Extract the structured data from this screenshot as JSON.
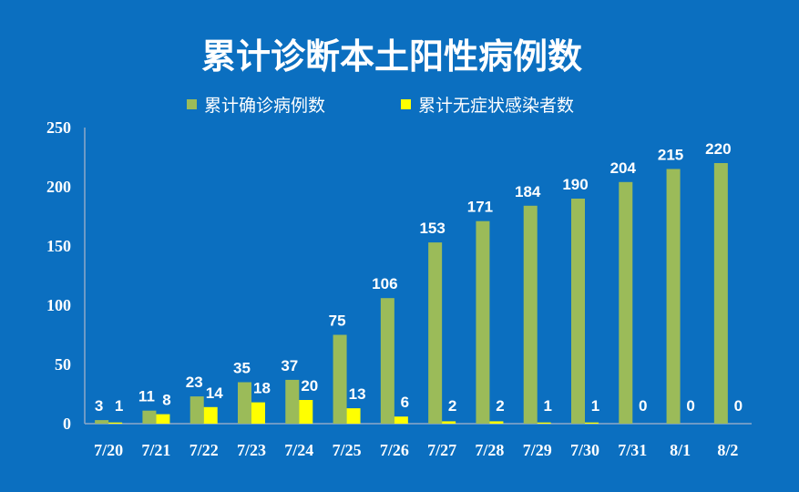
{
  "chart_data": {
    "type": "bar",
    "title": "累计诊断本土阳性病例数",
    "categories": [
      "7/20",
      "7/21",
      "7/22",
      "7/23",
      "7/24",
      "7/25",
      "7/26",
      "7/27",
      "7/28",
      "7/29",
      "7/30",
      "7/31",
      "8/1",
      "8/2"
    ],
    "series": [
      {
        "name": "累计确诊病例数",
        "color": "#9BBB59",
        "values": [
          3,
          11,
          23,
          35,
          37,
          75,
          106,
          153,
          171,
          184,
          190,
          204,
          215,
          220
        ]
      },
      {
        "name": "累计无症状感染者数",
        "color": "#FFFF00",
        "values": [
          1,
          8,
          14,
          18,
          20,
          13,
          6,
          2,
          2,
          1,
          1,
          0,
          0,
          0
        ]
      }
    ],
    "ylim": [
      0,
      250
    ],
    "yticks": [
      0,
      50,
      100,
      150,
      200,
      250
    ],
    "grid": false,
    "legend_position": "top",
    "background": "#0B6FC0"
  }
}
